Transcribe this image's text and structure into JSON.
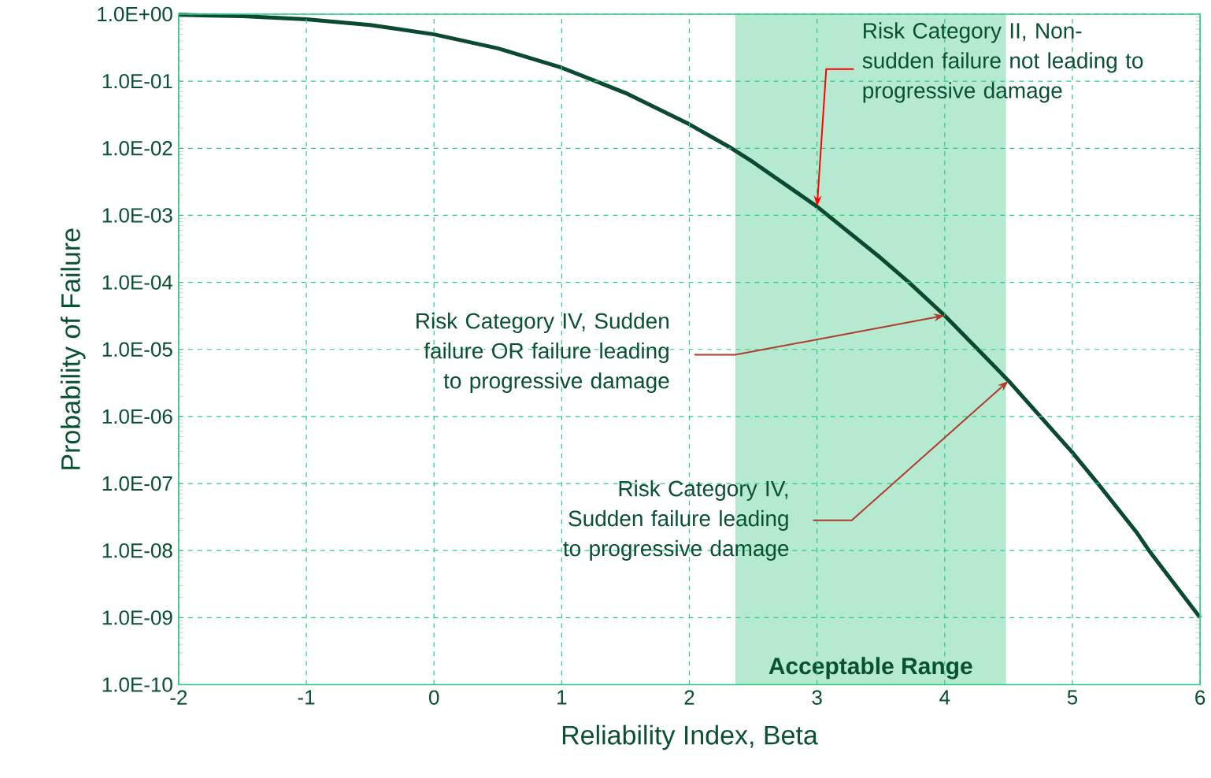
{
  "chart_data": {
    "type": "line",
    "xlabel": "Reliability Index, Beta",
    "ylabel": "Probability of Failure",
    "x": [
      -2,
      -1.5,
      -1,
      -0.5,
      0,
      0.5,
      1,
      1.5,
      2,
      2.33,
      2.5,
      3,
      3.5,
      3.72,
      4,
      4.26,
      4.5,
      5,
      5.2,
      5.5,
      5.6,
      6
    ],
    "series": [
      {
        "color": "#0b4a30",
        "values": [
          0.977,
          0.933,
          0.841,
          0.691,
          0.5,
          0.309,
          0.159,
          0.0668,
          0.0228,
          0.01,
          0.0062,
          0.00135,
          0.00023,
          0.0001,
          3.2e-05,
          1e-05,
          3.4e-06,
          2.9e-07,
          1e-07,
          1.9e-08,
          1e-08,
          1e-09
        ]
      }
    ],
    "log": "y",
    "xlim": [
      -2,
      6
    ],
    "ylim": [
      1e-10,
      1
    ],
    "xticks": [
      -2,
      -1,
      0,
      1,
      2,
      3,
      4,
      5,
      6
    ],
    "yticks": [
      {
        "value": 1e-10,
        "label": "1.0E-10"
      },
      {
        "value": 1e-09,
        "label": "1.0E-09"
      },
      {
        "value": 1e-08,
        "label": "1.0E-08"
      },
      {
        "value": 1e-07,
        "label": "1.0E-07"
      },
      {
        "value": 1e-06,
        "label": "1.0E-06"
      },
      {
        "value": 1e-05,
        "label": "1.0E-05"
      },
      {
        "value": 0.0001,
        "label": "1.0E-04"
      },
      {
        "value": 0.001,
        "label": "1.0E-03"
      },
      {
        "value": 0.01,
        "label": "1.0E-02"
      },
      {
        "value": 0.1,
        "label": "1.0E-01"
      },
      {
        "value": 1,
        "label": "1.0E+00"
      }
    ],
    "grid": true,
    "line_style": "solid",
    "marker": "none",
    "bands": [
      {
        "axis": "x",
        "from": 2.36,
        "to": 4.48,
        "label": "Acceptable Range",
        "color": "#b5ead0"
      }
    ],
    "annotations": [
      {
        "text": "Risk Category II, Non-sudden failure not leading to progressive damage",
        "x": 3,
        "y": 0.00135
      },
      {
        "text": "Risk Category IV, Sudden failure OR failure leading to progressive damage",
        "x": 4,
        "y": 3.2e-05
      },
      {
        "text": "Risk Category IV, Sudden failure leading to progressive damage",
        "x": 4.5,
        "y": 3.4e-06
      }
    ]
  }
}
